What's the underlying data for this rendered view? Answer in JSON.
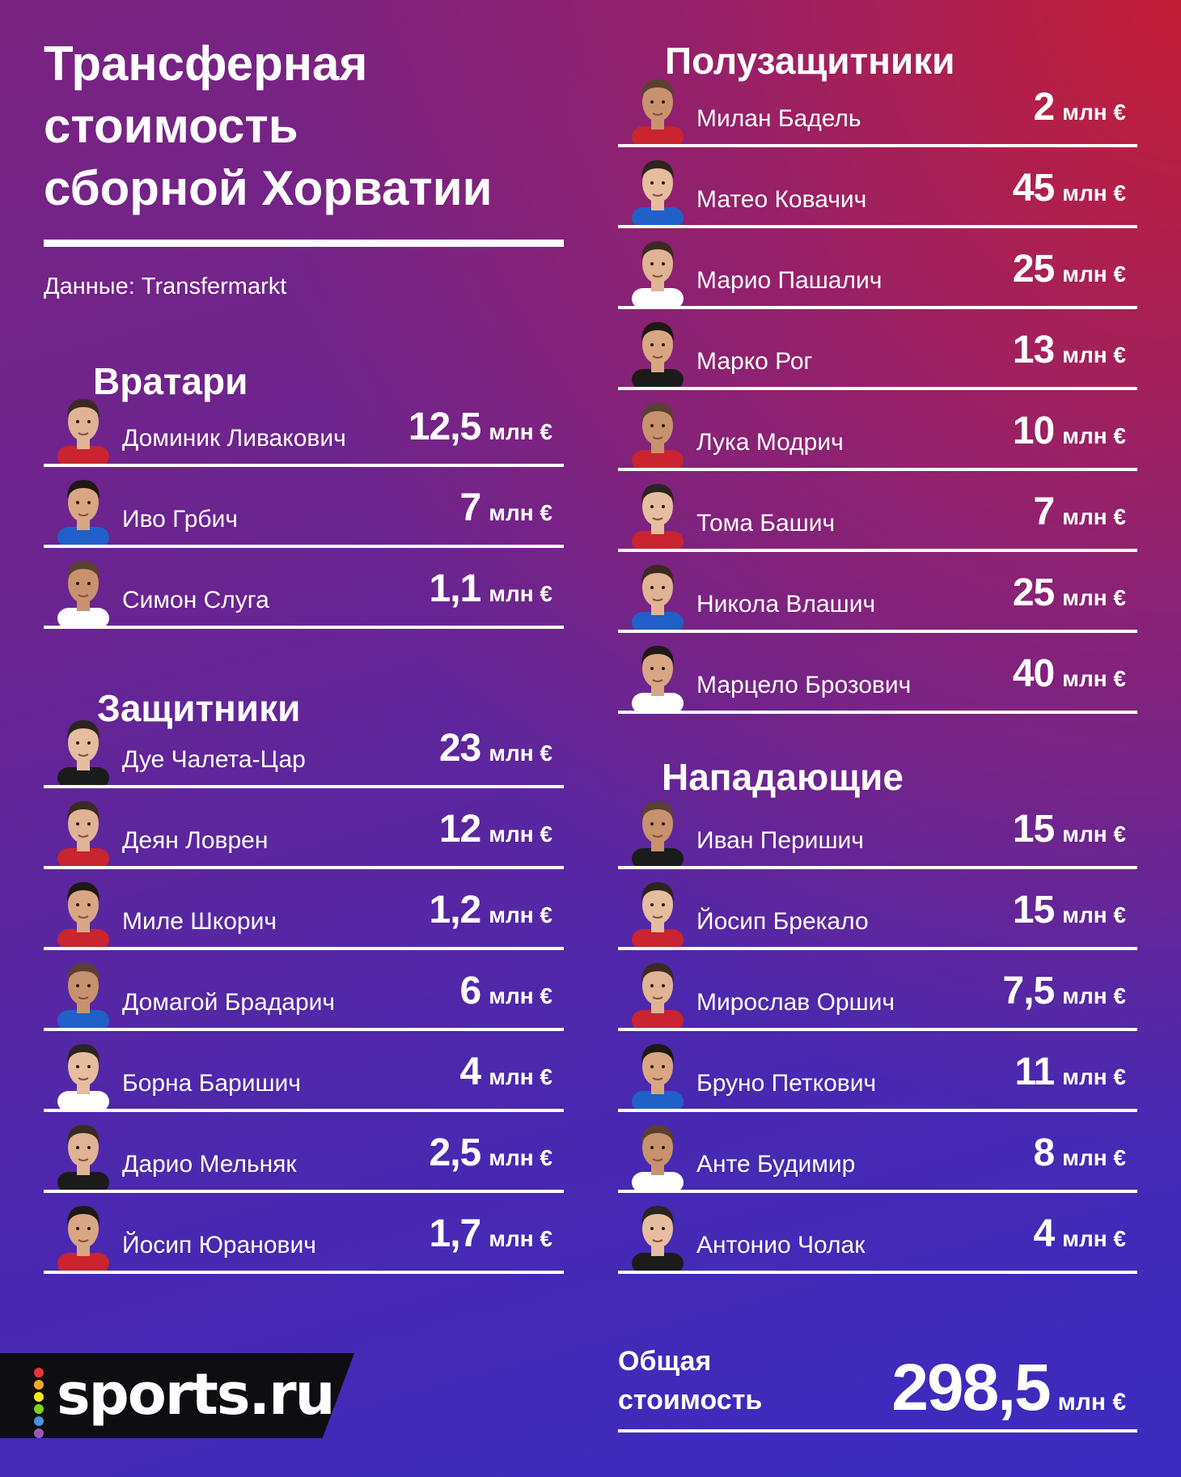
{
  "title_lines": [
    "Трансферная",
    "стоимость",
    "сборной Хорватии"
  ],
  "source": "Данные: Transfermarkt",
  "unit": "млн €",
  "sections": {
    "goalkeepers": {
      "heading": "Вратари",
      "players": [
        {
          "name": "Доминик Ливакович",
          "value": "12,5"
        },
        {
          "name": "Иво Грбич",
          "value": "7"
        },
        {
          "name": "Симон Слуга",
          "value": "1,1"
        }
      ]
    },
    "defenders": {
      "heading": "Защитники",
      "players": [
        {
          "name": "Дуе Чалета-Цар",
          "value": "23"
        },
        {
          "name": "Деян Ловрен",
          "value": "12"
        },
        {
          "name": "Миле Шкорич",
          "value": "1,2"
        },
        {
          "name": "Домагой Брадарич",
          "value": "6"
        },
        {
          "name": "Борна Баришич",
          "value": "4"
        },
        {
          "name": "Дарио Мельняк",
          "value": "2,5"
        },
        {
          "name": "Йосип Юранович",
          "value": "1,7"
        }
      ]
    },
    "midfielders": {
      "heading": "Полузащитники",
      "players": [
        {
          "name": "Милан Бадель",
          "value": "2"
        },
        {
          "name": "Матео Ковачич",
          "value": "45"
        },
        {
          "name": "Марио Пашалич",
          "value": "25"
        },
        {
          "name": "Марко Рог",
          "value": "13"
        },
        {
          "name": "Лука Модрич",
          "value": "10"
        },
        {
          "name": "Тома Башич",
          "value": "7"
        },
        {
          "name": "Никола Влашич",
          "value": "25"
        },
        {
          "name": "Марцело Брозович",
          "value": "40"
        }
      ]
    },
    "forwards": {
      "heading": "Нападающие",
      "players": [
        {
          "name": "Иван Перишич",
          "value": "15"
        },
        {
          "name": "Йосип Брекало",
          "value": "15"
        },
        {
          "name": "Мирослав Оршич",
          "value": "7,5"
        },
        {
          "name": "Бруно Петкович",
          "value": "11"
        },
        {
          "name": "Анте Будимир",
          "value": "8"
        },
        {
          "name": "Антонио Чолак",
          "value": "4"
        }
      ]
    }
  },
  "total": {
    "label_lines": [
      "Общая",
      "стоимость"
    ],
    "value": "298,5"
  },
  "brand": {
    "name": "sports.ru",
    "dot_colors": [
      "#e8343c",
      "#f5a623",
      "#f8e71c",
      "#7ed321",
      "#4a90e2",
      "#9b59b6"
    ]
  },
  "colors": {
    "bg_top_right": "#c81e32",
    "bg_bottom": "#3a2cc0",
    "text": "#ffffff",
    "brand_bg": "#0e0e12"
  }
}
